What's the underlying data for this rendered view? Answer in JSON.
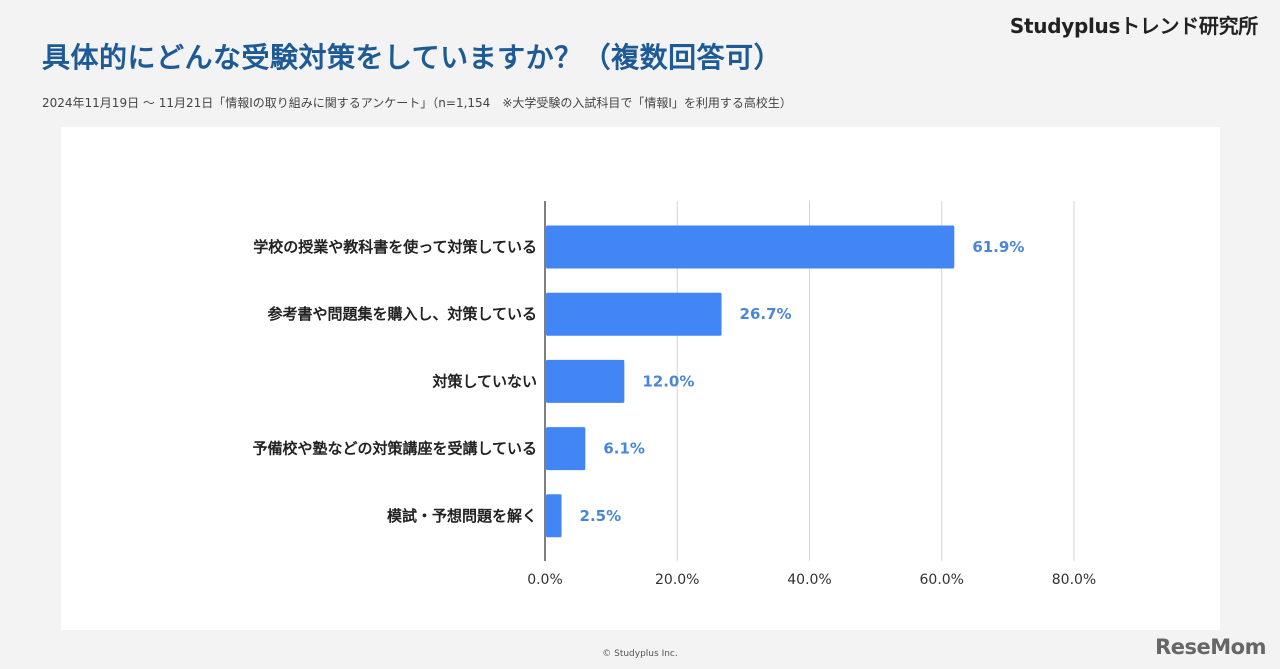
{
  "header": {
    "brand": "Studyplusトレンド研究所",
    "title": "具体的にどんな受験対策をしていますか？（複数回答可）",
    "subtitle": "2024年11月19日 〜 11月21日「情報Ⅰの取り組みに関するアンケート」（n=1,154　※大学受験の入試科目で「情報Ⅰ」を利用する高校生）"
  },
  "footer": {
    "copyright": "© Studyplus Inc.",
    "watermark": "ReseMom"
  },
  "colors": {
    "bar": "#4285f4",
    "value_label": "#4a86d8",
    "title": "#1e5a96",
    "grid": "#d6d6d6",
    "axis": "#555555"
  },
  "chart_data": {
    "type": "bar",
    "orientation": "horizontal",
    "categories": [
      "学校の授業や教科書を使って対策している",
      "参考書や問題集を購入し、対策している",
      "対策していない",
      "予備校や塾などの対策講座を受講している",
      "模試・予想問題を解く"
    ],
    "values": [
      61.9,
      26.7,
      12.0,
      6.1,
      2.5
    ],
    "value_labels": [
      "61.9%",
      "26.7%",
      "12.0%",
      "6.1%",
      "2.5%"
    ],
    "xlim": [
      0,
      80
    ],
    "ticks": [
      0,
      20,
      40,
      60,
      80
    ],
    "tick_labels": [
      "0.0%",
      "20.0%",
      "40.0%",
      "60.0%",
      "80.0%"
    ],
    "grid": true,
    "legend": "none"
  }
}
